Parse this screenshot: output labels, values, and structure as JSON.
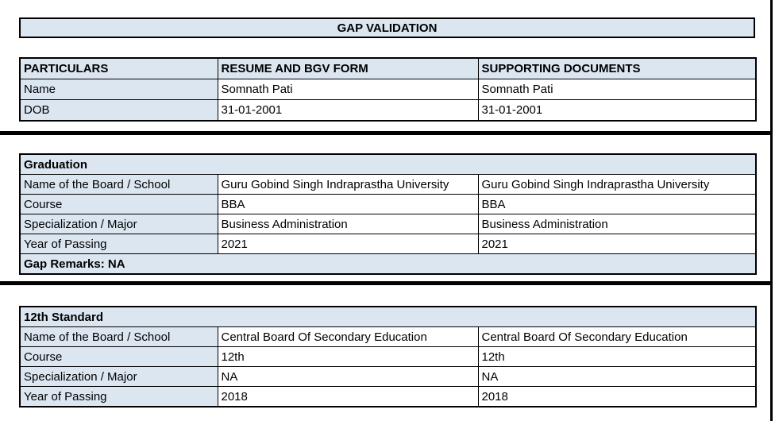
{
  "page": {
    "title": "GAP VALIDATION"
  },
  "colors": {
    "header_fill": "#dce6f1",
    "border": "#000000",
    "background": "#ffffff"
  },
  "identity_table": {
    "headers": [
      "PARTICULARS",
      "RESUME AND BGV FORM",
      "SUPPORTING DOCUMENTS"
    ],
    "rows": [
      {
        "label": "Name",
        "resume": "Somnath Pati",
        "supporting": "Somnath Pati"
      },
      {
        "label": "DOB",
        "resume": "31-01-2001",
        "supporting": "31-01-2001"
      }
    ]
  },
  "graduation_table": {
    "title": "Graduation",
    "rows": [
      {
        "label": "Name of the Board / School",
        "resume": "Guru Gobind Singh Indraprastha University",
        "supporting": "Guru Gobind Singh Indraprastha University"
      },
      {
        "label": "Course",
        "resume": "BBA",
        "supporting": "BBA"
      },
      {
        "label": "Specialization / Major",
        "resume": "Business Administration",
        "supporting": "Business Administration"
      },
      {
        "label": "Year of Passing",
        "resume": "2021",
        "supporting": "2021"
      }
    ],
    "gap_remarks": "Gap Remarks: NA"
  },
  "twelfth_table": {
    "title": "12th Standard",
    "rows": [
      {
        "label": "Name of the Board / School",
        "resume": "Central Board Of Secondary Education",
        "supporting": "Central Board Of Secondary Education"
      },
      {
        "label": "Course",
        "resume": "12th",
        "supporting": "12th"
      },
      {
        "label": "Specialization / Major",
        "resume": "NA",
        "supporting": "NA"
      },
      {
        "label": "Year of Passing",
        "resume": "2018",
        "supporting": "2018"
      }
    ]
  }
}
